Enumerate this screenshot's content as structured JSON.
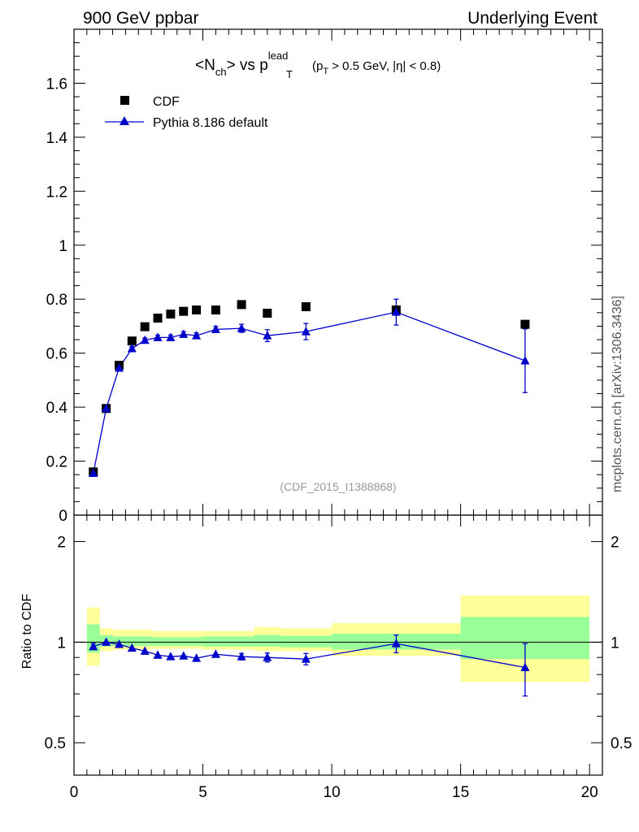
{
  "header": {
    "left": "900 GeV ppbar",
    "right": "Underlying Event"
  },
  "title": {
    "lhs_a": "<N",
    "lhs_sub": "ch",
    "lhs_b": "> vs p",
    "lhs_sup": "lead",
    "lhs_sub2": "T",
    "cut_a": "(p",
    "cut_sub": "T",
    "cut_b": " > 0.5 GeV, |η| < 0.8)"
  },
  "side_label": "mcplots.cern.ch [arXiv:1306.3436]",
  "analysis_id": "(CDF_2015_I1388868)",
  "chart_data": [
    {
      "type": "scatter",
      "panel": "main",
      "title": "<Nch> vs pT lead (pT > 0.5 GeV, |η| < 0.8)",
      "xlim": [
        0,
        20.5
      ],
      "ylim": [
        0,
        1.8
      ],
      "yticks": [
        "0",
        "0.2",
        "0.4",
        "0.6",
        "0.8",
        "1",
        "1.2",
        "1.4",
        "1.6"
      ],
      "legend": {
        "placement": "top-left",
        "entries": [
          "CDF",
          "Pythia 8.186 default"
        ]
      },
      "series": [
        {
          "name": "CDF",
          "style": "square-markers",
          "color": "#000000",
          "x": [
            0.75,
            1.25,
            1.75,
            2.25,
            2.75,
            3.25,
            3.75,
            4.25,
            4.75,
            5.5,
            6.5,
            7.5,
            9.0,
            12.5,
            17.5
          ],
          "y": [
            0.16,
            0.395,
            0.555,
            0.645,
            0.698,
            0.73,
            0.745,
            0.755,
            0.76,
            0.76,
            0.78,
            0.748,
            0.772,
            0.76,
            0.707
          ]
        },
        {
          "name": "Pythia 8.186 default",
          "style": "line-triangles",
          "color": "#0000cc",
          "x": [
            0.75,
            1.25,
            1.75,
            2.25,
            2.75,
            3.25,
            3.75,
            4.25,
            4.75,
            5.5,
            6.5,
            7.5,
            9.0,
            12.5,
            17.5
          ],
          "y": [
            0.155,
            0.395,
            0.545,
            0.617,
            0.648,
            0.658,
            0.658,
            0.67,
            0.665,
            0.688,
            0.692,
            0.665,
            0.68,
            0.752,
            0.572
          ],
          "yerr": [
            0.004,
            0.005,
            0.006,
            0.007,
            0.008,
            0.009,
            0.009,
            0.01,
            0.01,
            0.011,
            0.015,
            0.022,
            0.03,
            0.048,
            0.118
          ]
        }
      ]
    },
    {
      "type": "scatter",
      "panel": "ratio",
      "ylabel": "Ratio to CDF",
      "scale": "log",
      "xlim": [
        0,
        20.5
      ],
      "ylim": [
        0.4,
        2.4
      ],
      "yticks": [
        "0.5",
        "1",
        "2"
      ],
      "xticks": [
        "0",
        "5",
        "10",
        "15",
        "20"
      ],
      "reference_line": 1,
      "bands": [
        {
          "x0": 0.5,
          "x1": 1.0,
          "inner": [
            0.93,
            1.13
          ],
          "outer": [
            0.85,
            1.27
          ]
        },
        {
          "x0": 1.0,
          "x1": 1.5,
          "inner": [
            0.97,
            1.05
          ],
          "outer": [
            0.94,
            1.1
          ]
        },
        {
          "x0": 1.5,
          "x1": 3.0,
          "inner": [
            0.975,
            1.04
          ],
          "outer": [
            0.95,
            1.09
          ]
        },
        {
          "x0": 3.0,
          "x1": 5.0,
          "inner": [
            0.975,
            1.035
          ],
          "outer": [
            0.955,
            1.08
          ]
        },
        {
          "x0": 5.0,
          "x1": 7.0,
          "inner": [
            0.97,
            1.04
          ],
          "outer": [
            0.95,
            1.08
          ]
        },
        {
          "x0": 7.0,
          "x1": 8.0,
          "inner": [
            0.97,
            1.05
          ],
          "outer": [
            0.94,
            1.11
          ]
        },
        {
          "x0": 8.0,
          "x1": 10.0,
          "inner": [
            0.965,
            1.045
          ],
          "outer": [
            0.94,
            1.1
          ]
        },
        {
          "x0": 10.0,
          "x1": 15.0,
          "inner": [
            0.95,
            1.06
          ],
          "outer": [
            0.91,
            1.14
          ]
        },
        {
          "x0": 15.0,
          "x1": 20.0,
          "inner": [
            0.89,
            1.19
          ],
          "outer": [
            0.76,
            1.38
          ]
        }
      ],
      "series": [
        {
          "name": "Pythia 8.186 default",
          "color": "#0000cc",
          "x": [
            0.75,
            1.25,
            1.75,
            2.25,
            2.75,
            3.25,
            3.75,
            4.25,
            4.75,
            5.5,
            6.5,
            7.5,
            9.0,
            12.5,
            17.5
          ],
          "y": [
            0.97,
            1.0,
            0.985,
            0.96,
            0.94,
            0.915,
            0.905,
            0.91,
            0.895,
            0.92,
            0.905,
            0.9,
            0.89,
            0.99,
            0.84
          ],
          "yerr": [
            0.02,
            0.015,
            0.012,
            0.012,
            0.012,
            0.012,
            0.012,
            0.013,
            0.013,
            0.015,
            0.02,
            0.028,
            0.035,
            0.06,
            0.15
          ]
        }
      ]
    }
  ]
}
